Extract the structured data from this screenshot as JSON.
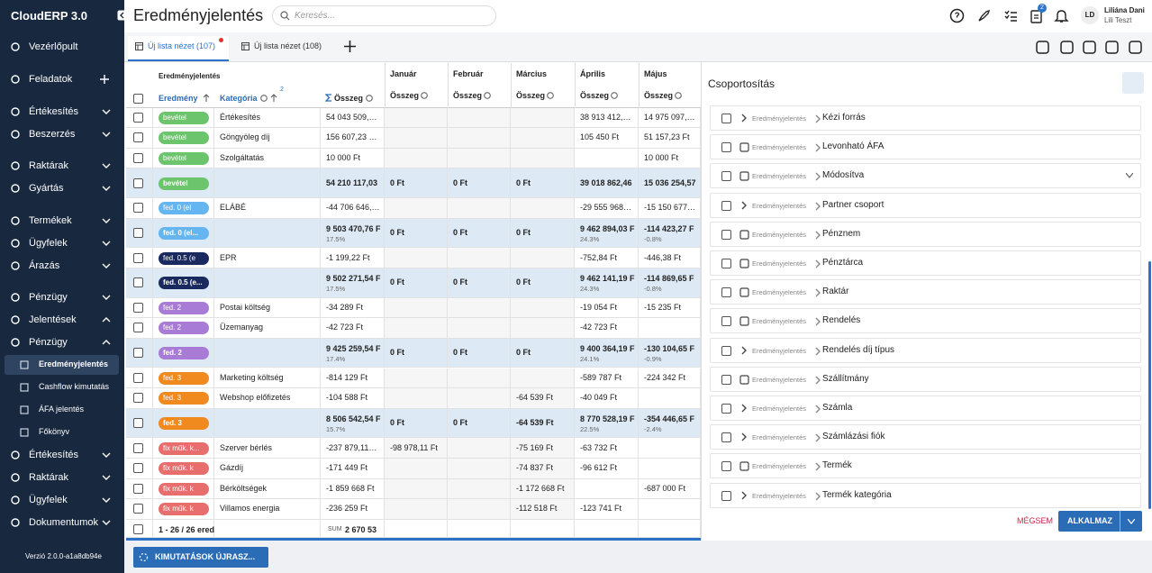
{
  "sidebar": {
    "brand": "CloudERP 3.0",
    "nav": [
      {
        "label": "Vezérlőpult"
      },
      {
        "label": "Feladatok"
      },
      {
        "label": "Értékesítés"
      },
      {
        "label": "Beszerzés"
      },
      {
        "label": "Raktárak"
      },
      {
        "label": "Gyártás"
      },
      {
        "label": "Termékek"
      },
      {
        "label": "Ügyfelek"
      },
      {
        "label": "Árazás"
      },
      {
        "label": "Pénzügy"
      },
      {
        "label": "Jelentések",
        "children": [
          {
            "label": "Pénzügy",
            "children": [
              {
                "label": "Eredményjelentés",
                "active": true
              },
              {
                "label": "Cashflow kimutatás"
              },
              {
                "label": "ÁFA jelentés"
              },
              {
                "label": "Főkönyv"
              }
            ]
          },
          {
            "label": "Értékesítés"
          },
          {
            "label": "Raktárak"
          },
          {
            "label": "Ügyfelek"
          }
        ]
      },
      {
        "label": "Dokumentumok"
      }
    ],
    "version": "Verzió 2.0.0-a1a8db94e"
  },
  "header": {
    "title": "Eredményjelentés",
    "search_placeholder": "Keresés...",
    "badge": "2",
    "avatar": "LD",
    "user_name": "Liliána Dani",
    "company": "Lili Teszt"
  },
  "tabs": [
    {
      "label": "Új lista nézet (107)",
      "active": true
    },
    {
      "label": "Új lista nézet (108)"
    }
  ],
  "table": {
    "group_header": "Eredményjelentés",
    "col_result": "Eredmény",
    "col_category": "Kategória",
    "sort_index": "2",
    "col_sum": "Összeg",
    "months": [
      {
        "name": "Január",
        "label": "Összeg"
      },
      {
        "name": "Február",
        "label": "Összeg"
      },
      {
        "name": "Március",
        "label": "Összeg"
      },
      {
        "name": "Április",
        "label": "Összeg"
      },
      {
        "name": "Május",
        "label": "Összeg"
      }
    ],
    "rows": [
      {
        "tag": "bevétel",
        "tag_color": "#6cc46c",
        "category": "Értékesítés",
        "cells": [
          "54 043 509,…",
          null,
          null,
          null,
          "38 913 412,…",
          "14 975 097,…"
        ]
      },
      {
        "tag": "bevétel",
        "tag_color": "#6cc46c",
        "category": "Göngyöleg díj",
        "cells": [
          "156 607,23 …",
          null,
          null,
          null,
          "105 450  Ft",
          "51 157,23  Ft"
        ]
      },
      {
        "tag": "bevétel",
        "tag_color": "#6cc46c",
        "category": "Szolgáltatás",
        "cells": [
          "10 000  Ft",
          null,
          null,
          null,
          null,
          "10 000  Ft"
        ]
      },
      {
        "tag": "bevétel",
        "tag_color": "#6cc46c",
        "cells": [
          "54 210 117,03",
          "0  Ft",
          "0  Ft",
          "0  Ft",
          "39 018 862,46",
          "15 036 254,57"
        ]
      },
      {
        "tag": "fed. 0 (el",
        "tag_color": "#64b5f0",
        "category": "ELÁBÉ",
        "cells": [
          "-44 706 646,…",
          null,
          null,
          null,
          "-29 555 968…",
          "-15 150 677…"
        ]
      },
      {
        "tag": "fed. 0 (el...",
        "tag_color": "#64b5f0",
        "cells": [
          "9 503 470,76  F",
          "0  Ft",
          "0  Ft",
          "0  Ft",
          "9 462 894,03  F",
          "-114 423,27  F"
        ],
        "percents": [
          "17.5%",
          null,
          null,
          null,
          "24.3%",
          "-0.8%"
        ]
      },
      {
        "tag": "fed. 0.5 (e",
        "tag_color": "#1b2a5e",
        "category": "EPR",
        "cells": [
          "-1 199,22  Ft",
          null,
          null,
          null,
          "-752,84  Ft",
          "-446,38  Ft"
        ]
      },
      {
        "tag": "fed. 0.5 (e...",
        "tag_color": "#1b2a5e",
        "cells": [
          "9 502 271,54  F",
          "0  Ft",
          "0  Ft",
          "0  Ft",
          "9 462 141,19  F",
          "-114 869,65  F"
        ],
        "percents": [
          "17.5%",
          null,
          null,
          null,
          "24.3%",
          "-0.8%"
        ]
      },
      {
        "tag": "fed. 2",
        "tag_color": "#a77bd6",
        "category": "Postai költség",
        "cells": [
          "-34 289  Ft",
          null,
          null,
          null,
          "-19 054  Ft",
          "-15 235  Ft"
        ]
      },
      {
        "tag": "fed. 2",
        "tag_color": "#a77bd6",
        "category": "Üzemanyag",
        "cells": [
          "-42 723  Ft",
          null,
          null,
          null,
          "-42 723  Ft",
          null
        ]
      },
      {
        "tag": "fed. 2",
        "tag_color": "#a77bd6",
        "cells": [
          "9 425 259,54  F",
          "0  Ft",
          "0  Ft",
          "0  Ft",
          "9 400 364,19  F",
          "-130 104,65  F"
        ],
        "percents": [
          "17.4%",
          null,
          null,
          null,
          "24.1%",
          "-0.9%"
        ]
      },
      {
        "tag": "fed. 3",
        "tag_color": "#f08a1e",
        "category": "Marketing költség",
        "cells": [
          "-814 129  Ft",
          null,
          null,
          null,
          "-589 787  Ft",
          "-224 342  Ft"
        ]
      },
      {
        "tag": "fed. 3",
        "tag_color": "#f08a1e",
        "category": "Webshop előfizetés",
        "cells": [
          "-104 588  Ft",
          null,
          null,
          "-64 539  Ft",
          "-40 049  Ft",
          null
        ]
      },
      {
        "tag": "fed. 3",
        "tag_color": "#f08a1e",
        "cells": [
          "8 506 542,54  F",
          "0  Ft",
          "0  Ft",
          "-64 539  Ft",
          "8 770 528,19  F",
          "-354 446,65  F"
        ],
        "percents": [
          "15.7%",
          null,
          null,
          null,
          "22.5%",
          "-2.4%"
        ]
      },
      {
        "tag": "fix műk. k...",
        "tag_color": "#e86e6e",
        "category": "Szerver bérlés",
        "cells": [
          "-237 879,11…",
          "-98 978,11  Ft",
          null,
          "-75 169  Ft",
          "-63 732  Ft",
          null
        ]
      },
      {
        "tag": "fix műk. k",
        "tag_color": "#e86e6e",
        "category": "Gázdíj",
        "cells": [
          "-171 449  Ft",
          null,
          null,
          "-74 837  Ft",
          "-96 612  Ft",
          null
        ]
      },
      {
        "tag": "fix műk. k",
        "tag_color": "#e86e6e",
        "category": "Bérköltségek",
        "cells": [
          "-1 859 668  Ft",
          null,
          null,
          "-1 172 668  Ft",
          null,
          "-687 000  Ft"
        ]
      },
      {
        "tag": "fix műk. k",
        "tag_color": "#e86e6e",
        "category": "Villamos energia",
        "cells": [
          "-236 259  Ft",
          null,
          null,
          "-112 518  Ft",
          "-123 741  Ft",
          null
        ]
      }
    ],
    "footer": {
      "count": "1 - 26 / 26 ered",
      "sum_label": "SUM",
      "sum": "2 670 53"
    }
  },
  "grouping": {
    "title": "Csoportosítás",
    "prefix": "Eredményjelentés",
    "items": [
      {
        "label": "Kézi forrás",
        "icon": "chevron"
      },
      {
        "label": "Levonható ÁFA",
        "icon": "field"
      },
      {
        "label": "Módosítva",
        "icon": "field",
        "dropdown": true
      },
      {
        "label": "Partner csoport",
        "icon": "chevron"
      },
      {
        "label": "Pénznem",
        "icon": "field"
      },
      {
        "label": "Pénztárca",
        "icon": "field"
      },
      {
        "label": "Raktár",
        "icon": "field"
      },
      {
        "label": "Rendelés",
        "icon": "field"
      },
      {
        "label": "Rendelés díj típus",
        "icon": "chevron"
      },
      {
        "label": "Szállítmány",
        "icon": "field"
      },
      {
        "label": "Számla",
        "icon": "chevron"
      },
      {
        "label": "Számlázási fiók",
        "icon": "chevron"
      },
      {
        "label": "Termék",
        "icon": "field"
      },
      {
        "label": "Termék kategória",
        "icon": "chevron"
      }
    ],
    "cancel": "MÉGSEM",
    "apply": "ALKALMAZ"
  },
  "bottom_button": "KIMUTATÁSOK ÚJRASZ..."
}
